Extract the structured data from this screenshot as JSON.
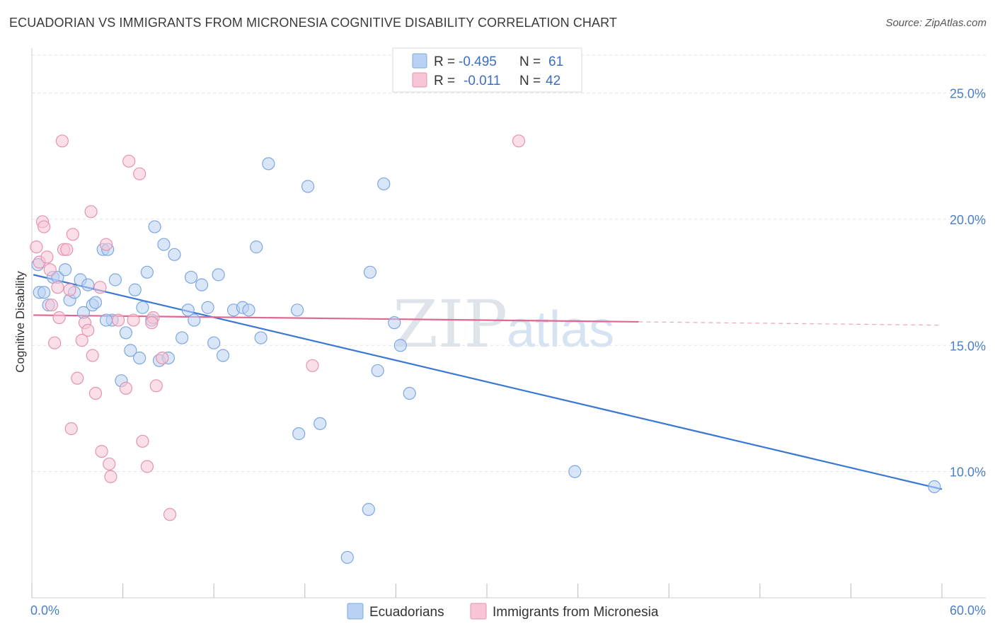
{
  "title": "ECUADORIAN VS IMMIGRANTS FROM MICRONESIA COGNITIVE DISABILITY CORRELATION CHART",
  "source": "Source: ZipAtlas.com",
  "watermark": {
    "zip": "ZIP",
    "atlas": "atlas"
  },
  "chart_data": {
    "type": "scatter",
    "title": "ECUADORIAN VS IMMIGRANTS FROM MICRONESIA COGNITIVE DISABILITY CORRELATION CHART",
    "xlabel": "",
    "ylabel": "Cognitive Disability",
    "xlim": [
      0,
      60
    ],
    "ylim": [
      5,
      26.5
    ],
    "x_tick_labels": [
      "0.0%",
      "60.0%"
    ],
    "y_ticks": [
      10,
      15,
      20,
      25
    ],
    "y_tick_labels": [
      "10.0%",
      "15.0%",
      "20.0%",
      "25.0%"
    ],
    "grid": true,
    "legend_position": "top-center",
    "colors": {
      "blue": "#3b78d4",
      "blue_fill": "#b9d1f2",
      "pink": "#e06890",
      "pink_fill": "#f7c5d6"
    },
    "legend": [
      {
        "r_label": "R = ",
        "r_value": "-0.495",
        "n_label": "N = ",
        "n_value": "61"
      },
      {
        "r_label": "R = ",
        "r_value": "-0.011",
        "n_label": "N = ",
        "n_value": "42"
      }
    ],
    "series": [
      {
        "name": "Ecuadorians",
        "trend": {
          "x0": 0.1,
          "y0": 17.8,
          "x1": 60,
          "y1": 9.3,
          "solid_until": 60
        },
        "points": [
          [
            0.5,
            17.1
          ],
          [
            0.4,
            18.2
          ],
          [
            0.8,
            17.1
          ],
          [
            1.1,
            16.6
          ],
          [
            1.4,
            17.7
          ],
          [
            1.7,
            17.7
          ],
          [
            2.2,
            18.0
          ],
          [
            2.5,
            16.8
          ],
          [
            2.8,
            17.1
          ],
          [
            3.2,
            17.6
          ],
          [
            3.4,
            16.3
          ],
          [
            3.7,
            17.4
          ],
          [
            4.0,
            16.6
          ],
          [
            4.2,
            16.7
          ],
          [
            4.7,
            18.8
          ],
          [
            5.0,
            18.8
          ],
          [
            5.3,
            16.0
          ],
          [
            5.5,
            17.6
          ],
          [
            5.9,
            13.6
          ],
          [
            6.2,
            15.5
          ],
          [
            6.5,
            14.8
          ],
          [
            6.8,
            17.2
          ],
          [
            7.1,
            14.5
          ],
          [
            7.3,
            16.5
          ],
          [
            7.6,
            17.9
          ],
          [
            7.9,
            16.0
          ],
          [
            8.1,
            19.7
          ],
          [
            8.4,
            14.4
          ],
          [
            8.7,
            19.0
          ],
          [
            9.0,
            14.5
          ],
          [
            9.4,
            18.6
          ],
          [
            9.9,
            15.3
          ],
          [
            10.3,
            16.4
          ],
          [
            10.5,
            17.7
          ],
          [
            10.7,
            16.0
          ],
          [
            11.2,
            17.4
          ],
          [
            11.6,
            16.5
          ],
          [
            12.0,
            15.1
          ],
          [
            12.3,
            17.8
          ],
          [
            12.6,
            14.6
          ],
          [
            13.3,
            16.4
          ],
          [
            13.9,
            16.5
          ],
          [
            14.3,
            16.4
          ],
          [
            14.8,
            18.9
          ],
          [
            15.1,
            15.3
          ],
          [
            15.6,
            22.2
          ],
          [
            17.5,
            16.4
          ],
          [
            17.6,
            11.5
          ],
          [
            18.2,
            21.3
          ],
          [
            19.0,
            11.9
          ],
          [
            20.8,
            6.6
          ],
          [
            22.2,
            8.5
          ],
          [
            22.3,
            17.9
          ],
          [
            22.8,
            14.0
          ],
          [
            23.2,
            21.4
          ],
          [
            23.9,
            15.9
          ],
          [
            24.3,
            15.0
          ],
          [
            24.9,
            13.1
          ],
          [
            35.8,
            10.0
          ],
          [
            59.5,
            9.4
          ],
          [
            4.9,
            16.0
          ]
        ]
      },
      {
        "name": "Immigrants from Micronesia",
        "trend": {
          "x0": 0.1,
          "y0": 16.2,
          "x1": 60,
          "y1": 15.8,
          "solid_until": 40
        },
        "points": [
          [
            0.3,
            18.9
          ],
          [
            0.5,
            18.3
          ],
          [
            0.7,
            19.9
          ],
          [
            0.8,
            19.7
          ],
          [
            1.0,
            18.5
          ],
          [
            1.2,
            18.0
          ],
          [
            1.3,
            16.6
          ],
          [
            1.5,
            15.1
          ],
          [
            1.7,
            17.3
          ],
          [
            1.8,
            16.1
          ],
          [
            2.0,
            23.1
          ],
          [
            2.1,
            18.8
          ],
          [
            2.3,
            18.8
          ],
          [
            2.5,
            17.2
          ],
          [
            2.6,
            11.7
          ],
          [
            2.7,
            19.4
          ],
          [
            3.0,
            13.7
          ],
          [
            3.3,
            15.2
          ],
          [
            3.5,
            15.9
          ],
          [
            3.7,
            15.6
          ],
          [
            3.9,
            20.3
          ],
          [
            4.0,
            14.6
          ],
          [
            4.2,
            13.1
          ],
          [
            4.5,
            17.3
          ],
          [
            4.6,
            10.8
          ],
          [
            4.9,
            19.0
          ],
          [
            5.1,
            10.3
          ],
          [
            5.2,
            9.8
          ],
          [
            5.7,
            16.0
          ],
          [
            6.2,
            13.3
          ],
          [
            6.4,
            22.3
          ],
          [
            6.7,
            16.0
          ],
          [
            7.1,
            21.8
          ],
          [
            7.3,
            11.2
          ],
          [
            7.6,
            10.2
          ],
          [
            8.0,
            16.1
          ],
          [
            8.2,
            13.4
          ],
          [
            8.6,
            14.5
          ],
          [
            9.1,
            8.3
          ],
          [
            18.5,
            14.2
          ],
          [
            32.1,
            23.1
          ],
          [
            7.9,
            15.9
          ]
        ]
      }
    ]
  },
  "legend_bottom": [
    "Ecuadorians",
    "Immigrants from Micronesia"
  ]
}
